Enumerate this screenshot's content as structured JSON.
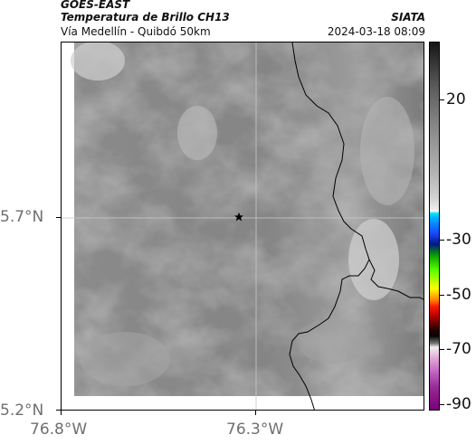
{
  "header": {
    "satellite": "GOES-EAST",
    "product": "Temperatura de Brillo CH13",
    "route": "Vía Medellín - Quibdó 50km",
    "org": "SIATA",
    "datetime": "2024-03-18 08:09"
  },
  "map": {
    "lat_ticks": [
      {
        "value": 5.7,
        "label": "5.7°N"
      },
      {
        "value": 5.2,
        "label": "5.2°N"
      }
    ],
    "lon_ticks": [
      {
        "value": -76.8,
        "label": "76.8°W"
      },
      {
        "value": -76.3,
        "label": "76.3°W"
      }
    ],
    "marker_icon": "star-icon"
  },
  "colorbar": {
    "ticks": [
      {
        "label": "20"
      },
      {
        "label": "-30"
      },
      {
        "label": "-50"
      },
      {
        "label": "-70"
      },
      {
        "label": "-90"
      }
    ]
  },
  "colors": {
    "cloud_light": "#d9d9d9",
    "cloud_dark": "#6e6e6e",
    "border_line": "#000000",
    "grid_line": "#c8c8c8"
  }
}
